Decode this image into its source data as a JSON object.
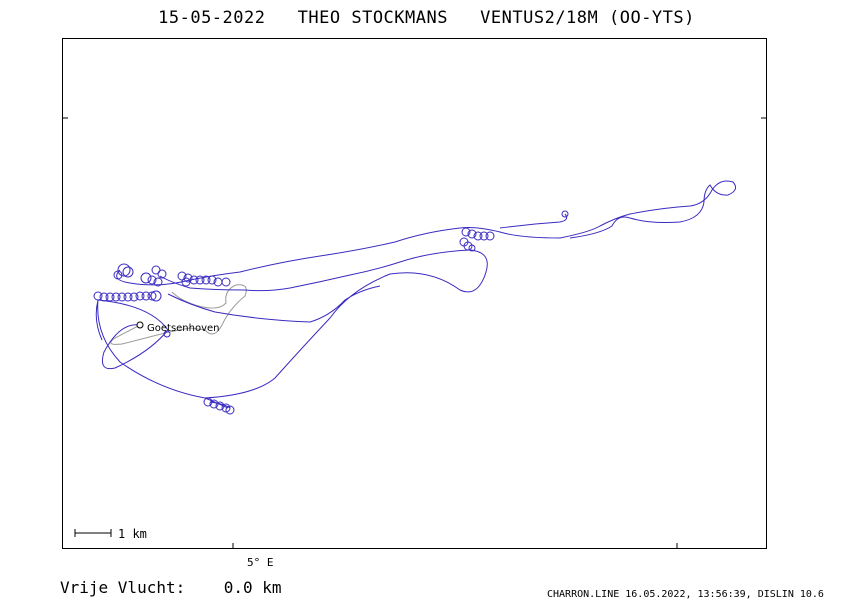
{
  "header": {
    "title": "15-05-2022   THEO STOCKMANS   VENTUS2/18M (OO-YTS)"
  },
  "map": {
    "meridian_label": "5° E",
    "scale_label": "1 km",
    "place_label": "Goetsenhoven",
    "track_color": "#3a2bc0",
    "task_color": "#9a9a9a"
  },
  "footer": {
    "free_flight": "Vrije Vlucht:    0.0 km",
    "generator": "CHARRON.LINE 16.05.2022, 13:56:39, DISLIN 10.6"
  }
}
